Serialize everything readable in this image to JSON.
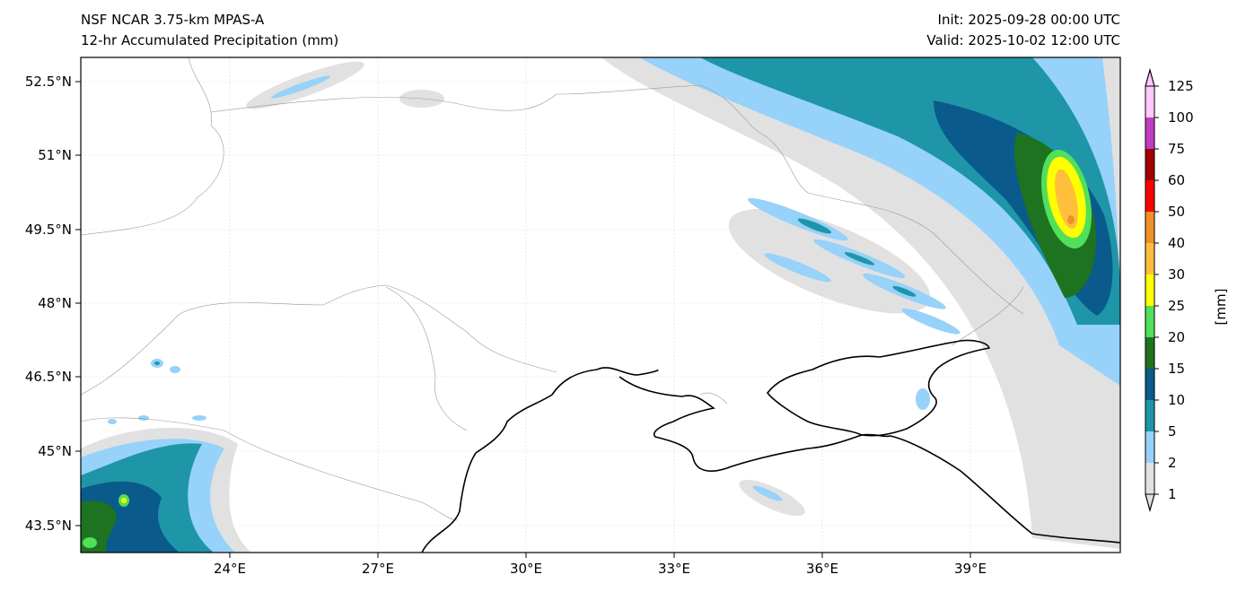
{
  "header": {
    "model": "NSF NCAR 3.75-km MPAS-A",
    "field": "12-hr Accumulated Precipitation (mm)",
    "init": "Init: 2025-09-28 00:00 UTC",
    "valid": "Valid: 2025-10-02 12:00 UTC"
  },
  "axes": {
    "lat_labels": [
      "52.5°N",
      "51°N",
      "49.5°N",
      "48°N",
      "46.5°N",
      "45°N",
      "43.5°N"
    ],
    "lon_labels": [
      "24°E",
      "27°E",
      "30°E",
      "33°E",
      "36°E",
      "39°E"
    ],
    "lon_range": [
      21,
      42
    ],
    "lat_range": [
      43,
      53
    ]
  },
  "colorbar": {
    "label": "[mm]",
    "levels": [
      "1",
      "2",
      "5",
      "10",
      "15",
      "20",
      "25",
      "30",
      "40",
      "50",
      "60",
      "75",
      "100",
      "125"
    ],
    "colors": [
      "#e1e1e1",
      "#96d2fa",
      "#1f95a8",
      "#0a5a8c",
      "#1e7320",
      "#50e05a",
      "#ffff00",
      "#ffbe3c",
      "#f0902a",
      "#ff0000",
      "#a00000",
      "#c03cc0",
      "#ffc8ff"
    ]
  }
}
